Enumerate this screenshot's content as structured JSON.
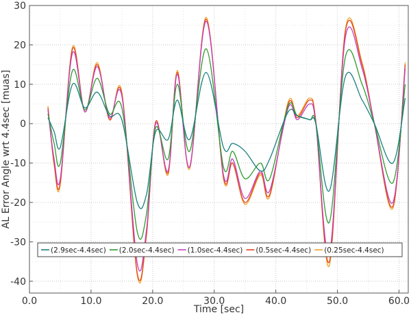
{
  "chart_data": {
    "type": "line",
    "xlabel": "Time [sec]",
    "ylabel": "AL Error Angle wrt 4.4sec [muas]",
    "xlim": [
      0,
      61.5
    ],
    "ylim": [
      -43,
      30
    ],
    "xticks": [
      0,
      10,
      20,
      30,
      40,
      50,
      60
    ],
    "xtick_labels": [
      "0.0",
      "10.0",
      "20.0",
      "30.0",
      "40.0",
      "50.0",
      "60.0"
    ],
    "yticks": [
      -40,
      -30,
      -20,
      -10,
      0,
      10,
      20,
      30
    ],
    "ytick_labels": [
      "-40",
      "-30",
      "-20",
      "-10",
      "0",
      "10",
      "20",
      "30"
    ],
    "grid": true,
    "legend_placement": "bottom-center",
    "x": [
      3,
      4,
      5,
      7,
      9,
      11,
      13,
      15,
      17.5,
      19,
      20.5,
      22.5,
      24,
      26,
      28.7,
      31.5,
      33,
      35,
      37.5,
      39,
      42,
      43.5,
      45.5,
      46.5,
      48.7,
      51.3,
      54,
      56,
      59,
      61
    ],
    "series": [
      {
        "name": "(2.9sec-4.4sec)",
        "color": "#1a7f7f",
        "values": [
          1.5,
          -2,
          -6,
          10,
          4,
          8,
          2,
          1,
          -20,
          -18,
          -2,
          -4,
          6,
          -4,
          13,
          -6,
          -5,
          -7,
          -12,
          -9,
          3,
          2,
          1,
          0,
          -17,
          12,
          6,
          0,
          -10,
          6.5
        ]
      },
      {
        "name": "(2.0sec-4.4sec)",
        "color": "#2e9a2e",
        "values": [
          2.5,
          -5,
          -10,
          13.5,
          3.5,
          11.5,
          2.5,
          4,
          -27.5,
          -23,
          -1,
          -9,
          10,
          -7,
          19,
          -11,
          -7,
          -14,
          -10,
          -14,
          4.5,
          2,
          1,
          0,
          -25,
          17,
          10,
          0,
          -15,
          10
        ]
      },
      {
        "name": "(1.0sec-4.4sec)",
        "color": "#c23fc2",
        "values": [
          3.5,
          -9,
          -14,
          18,
          3,
          14.5,
          1.5,
          7,
          -35.5,
          -27,
          0,
          -12,
          12.5,
          -11,
          26,
          -13,
          -9,
          -19,
          -12,
          -17,
          4,
          1,
          5,
          0,
          -33,
          22,
          14,
          0,
          -20,
          14
        ]
      },
      {
        "name": "(0.5sec-4.4sec)",
        "color": "#e2431e",
        "values": [
          4,
          -10,
          -15,
          19,
          3,
          15,
          1,
          7.5,
          -38,
          -28,
          0.5,
          -12.5,
          13,
          -11,
          26.5,
          -13.5,
          -10,
          -20,
          -12.5,
          -18,
          5,
          1.5,
          6,
          0.5,
          -35,
          23.5,
          15,
          0,
          -21,
          15
        ]
      },
      {
        "name": "(0.25sec-4.4sec)",
        "color": "#f0a028",
        "values": [
          4.5,
          -10.5,
          -15.5,
          19.5,
          3,
          15.5,
          1,
          8,
          -38.5,
          -28.5,
          0.5,
          -13,
          13.5,
          -11.5,
          27,
          -14,
          -10,
          -20.5,
          -13,
          -18.5,
          5.5,
          2,
          6.5,
          0.5,
          -36,
          24,
          15.5,
          0,
          -21.5,
          15.5
        ]
      }
    ]
  }
}
